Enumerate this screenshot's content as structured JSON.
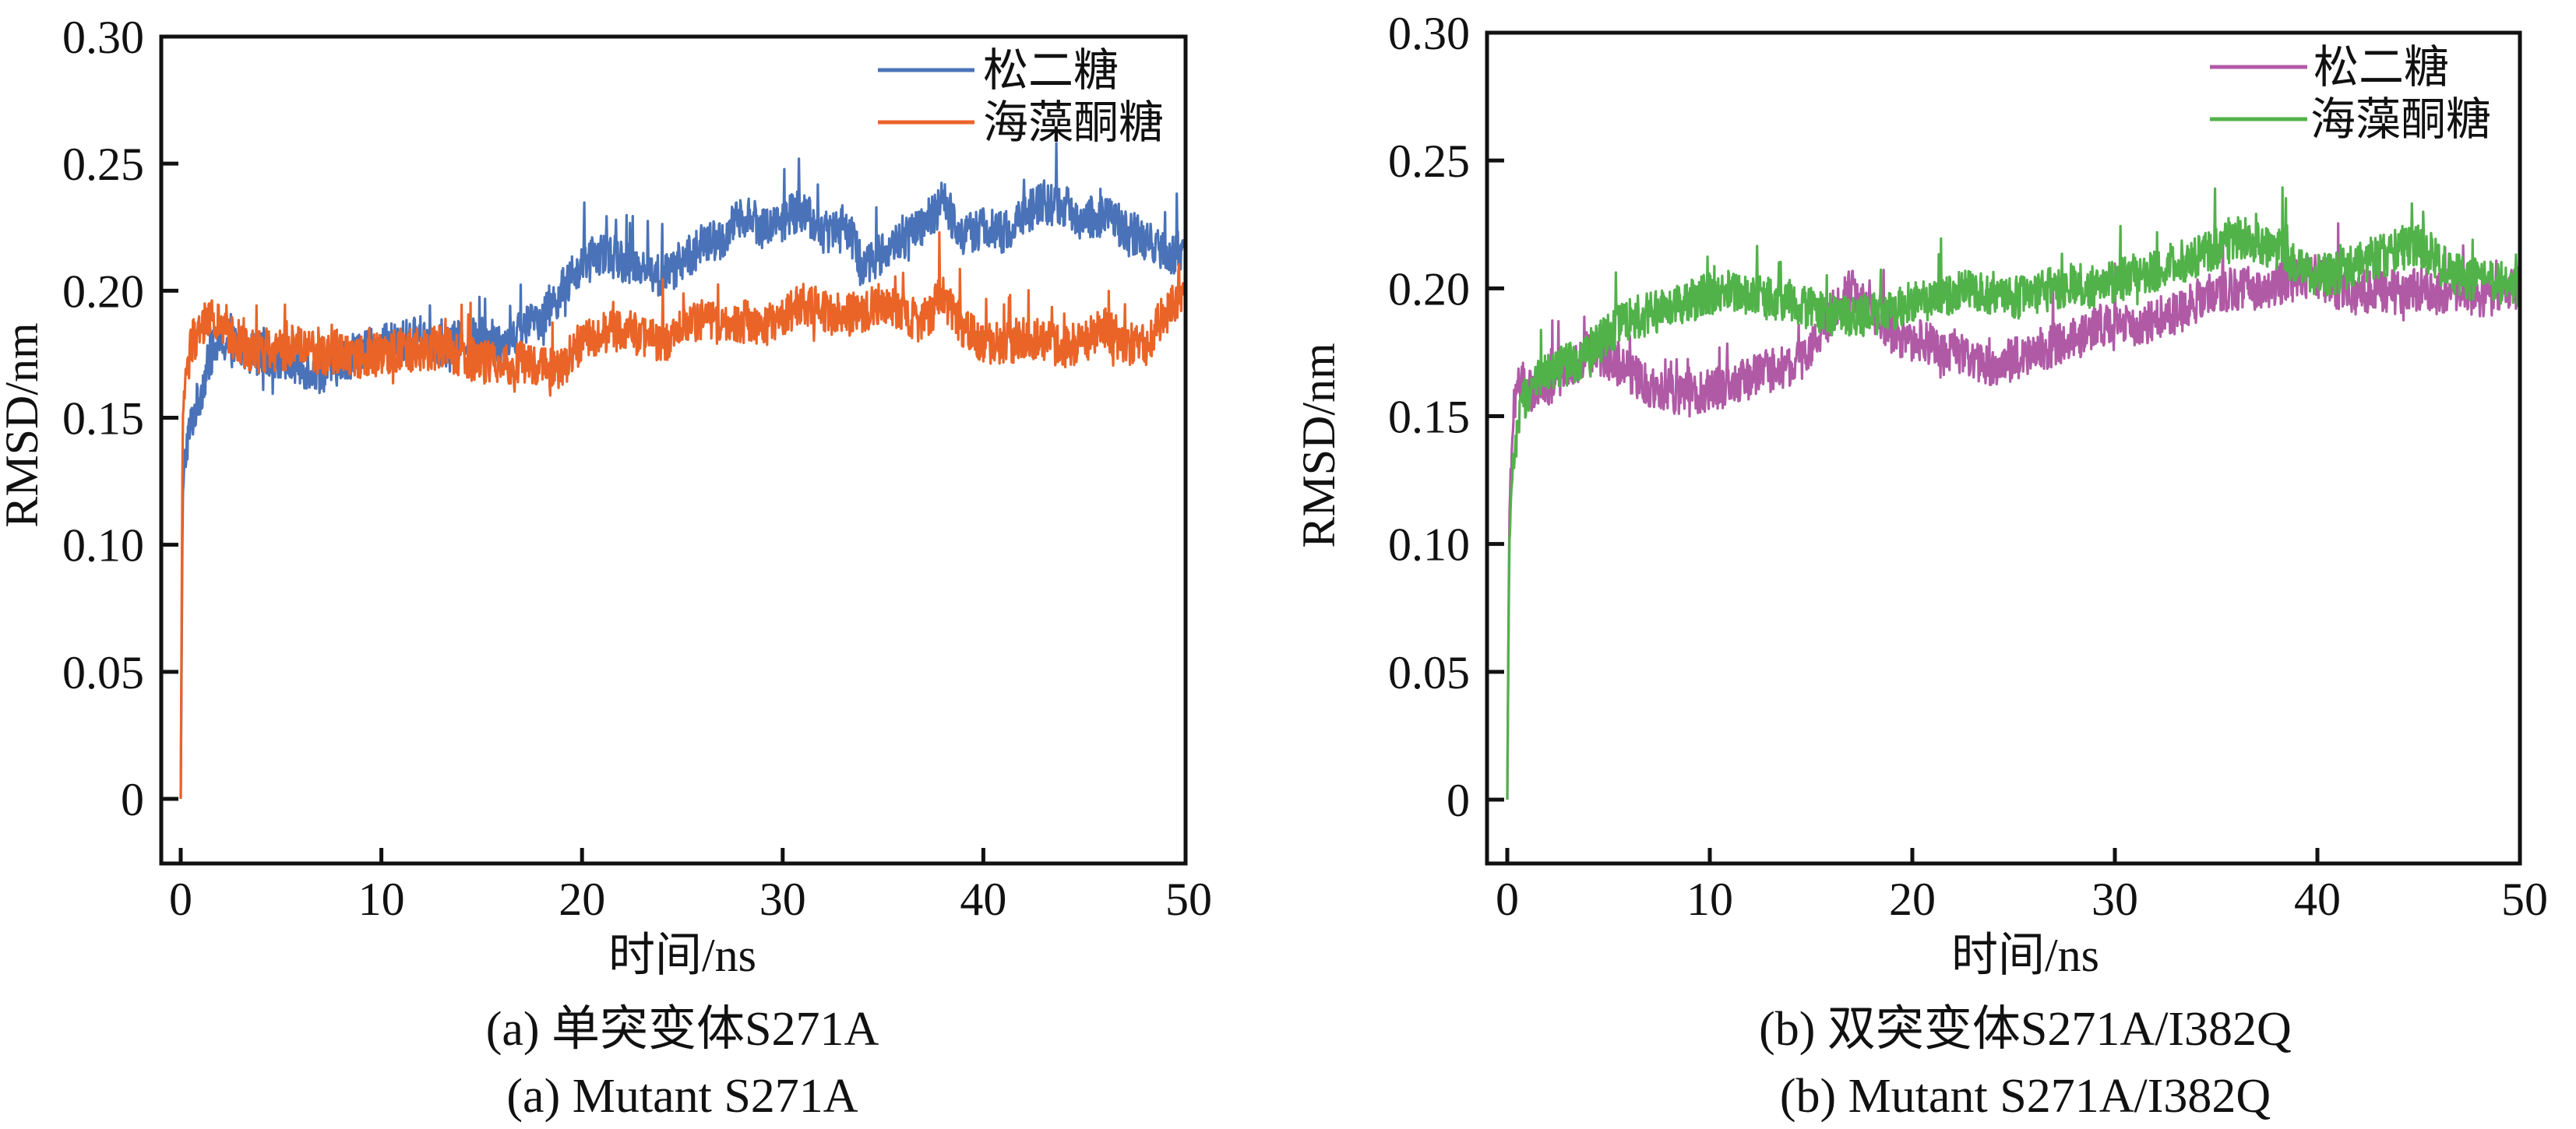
{
  "colors": {
    "axis": "#111111",
    "a_series1": "#4a72b8",
    "a_series2": "#ea6428",
    "b_series1": "#b05aa6",
    "b_series2": "#52b24a"
  },
  "chart_data": [
    {
      "id": "a",
      "type": "line",
      "title": "",
      "xlabel": "时间/ns",
      "ylabel": "RMSD/nm",
      "xlim": [
        -0.5,
        50
      ],
      "ylim": [
        -0.025,
        0.3
      ],
      "xticks": [
        0,
        10,
        20,
        30,
        40,
        50
      ],
      "xtick_labels": [
        "0",
        "10",
        "20",
        "30",
        "40",
        "50"
      ],
      "yticks": [
        0,
        0.05,
        0.1,
        0.15,
        0.2,
        0.25,
        0.3
      ],
      "ytick_labels": [
        "0",
        "0.05",
        "0.10",
        "0.15",
        "0.20",
        "0.25",
        "0.30"
      ],
      "grid": false,
      "legend_position": "top-right",
      "caption_cn": "(a) 单突变体S271A",
      "caption_en": "(a) Mutant S271A",
      "series": [
        {
          "name": "松二糖",
          "color_key": "a_series1",
          "x": [
            0,
            0.1,
            0.3,
            0.6,
            1,
            1.5,
            2,
            3,
            4,
            5,
            6,
            7,
            8,
            9,
            10,
            11,
            12,
            13,
            14,
            15,
            16,
            17,
            18,
            19,
            20,
            21,
            22,
            23,
            24,
            25,
            26,
            27,
            28,
            29,
            30,
            31,
            32,
            33,
            34,
            35,
            36,
            37,
            38,
            39,
            40,
            41,
            42,
            43,
            44,
            45,
            46,
            47,
            48,
            49,
            50
          ],
          "y": [
            0.0,
            0.12,
            0.14,
            0.15,
            0.16,
            0.175,
            0.18,
            0.177,
            0.175,
            0.173,
            0.17,
            0.168,
            0.172,
            0.176,
            0.178,
            0.18,
            0.182,
            0.178,
            0.18,
            0.182,
            0.18,
            0.185,
            0.19,
            0.2,
            0.21,
            0.215,
            0.212,
            0.21,
            0.205,
            0.212,
            0.218,
            0.22,
            0.23,
            0.225,
            0.228,
            0.232,
            0.222,
            0.228,
            0.21,
            0.215,
            0.22,
            0.225,
            0.235,
            0.222,
            0.225,
            0.222,
            0.23,
            0.235,
            0.233,
            0.228,
            0.23,
            0.225,
            0.22,
            0.215,
            0.215
          ]
        },
        {
          "name": "海藻酮糖",
          "color_key": "a_series2",
          "x": [
            0,
            0.1,
            0.3,
            0.6,
            1,
            1.5,
            2,
            3,
            4,
            5,
            6,
            7,
            8,
            9,
            10,
            11,
            12,
            13,
            14,
            15,
            16,
            17,
            18,
            19,
            20,
            21,
            22,
            23,
            24,
            25,
            26,
            27,
            28,
            29,
            30,
            31,
            32,
            33,
            34,
            35,
            36,
            37,
            38,
            39,
            40,
            41,
            42,
            43,
            44,
            45,
            46,
            47,
            48,
            49,
            50
          ],
          "y": [
            0.0,
            0.15,
            0.17,
            0.18,
            0.185,
            0.19,
            0.185,
            0.178,
            0.176,
            0.177,
            0.178,
            0.175,
            0.176,
            0.174,
            0.175,
            0.177,
            0.176,
            0.178,
            0.174,
            0.172,
            0.171,
            0.172,
            0.17,
            0.17,
            0.18,
            0.183,
            0.185,
            0.182,
            0.18,
            0.185,
            0.188,
            0.186,
            0.188,
            0.186,
            0.19,
            0.195,
            0.192,
            0.19,
            0.192,
            0.195,
            0.19,
            0.188,
            0.198,
            0.185,
            0.18,
            0.178,
            0.182,
            0.18,
            0.178,
            0.18,
            0.185,
            0.18,
            0.178,
            0.19,
            0.2
          ]
        }
      ]
    },
    {
      "id": "b",
      "type": "line",
      "title": "",
      "xlabel": "时间/ns",
      "ylabel": "RMSD/nm",
      "xlim": [
        -0.5,
        50
      ],
      "ylim": [
        -0.025,
        0.3
      ],
      "xticks": [
        0,
        10,
        20,
        30,
        40,
        50
      ],
      "xtick_labels": [
        "0",
        "10",
        "20",
        "30",
        "40",
        "50"
      ],
      "yticks": [
        0,
        0.05,
        0.1,
        0.15,
        0.2,
        0.25,
        0.3
      ],
      "ytick_labels": [
        "0",
        "0.05",
        "0.10",
        "0.15",
        "0.20",
        "0.25",
        "0.30"
      ],
      "grid": false,
      "legend_position": "top-right",
      "caption_cn": "(b) 双突变体S271A/I382Q",
      "caption_en": "(b) Mutant S271A/I382Q",
      "series": [
        {
          "name": "松二糖",
          "color_key": "b_series1",
          "x": [
            0,
            0.1,
            0.3,
            0.6,
            1,
            1.5,
            2,
            3,
            4,
            5,
            6,
            7,
            8,
            9,
            10,
            11,
            12,
            13,
            14,
            15,
            16,
            17,
            18,
            19,
            20,
            21,
            22,
            23,
            24,
            25,
            26,
            27,
            28,
            29,
            30,
            31,
            32,
            33,
            34,
            35,
            36,
            37,
            38,
            39,
            40,
            41,
            42,
            43,
            44,
            45,
            46,
            47,
            48,
            49,
            50
          ],
          "y": [
            0.0,
            0.11,
            0.155,
            0.165,
            0.16,
            0.158,
            0.162,
            0.168,
            0.175,
            0.172,
            0.168,
            0.162,
            0.16,
            0.158,
            0.16,
            0.162,
            0.165,
            0.168,
            0.17,
            0.175,
            0.19,
            0.2,
            0.19,
            0.182,
            0.18,
            0.178,
            0.175,
            0.172,
            0.17,
            0.172,
            0.175,
            0.178,
            0.18,
            0.185,
            0.186,
            0.185,
            0.188,
            0.19,
            0.195,
            0.198,
            0.2,
            0.2,
            0.202,
            0.203,
            0.205,
            0.2,
            0.198,
            0.2,
            0.198,
            0.2,
            0.198,
            0.2,
            0.197,
            0.198,
            0.2
          ]
        },
        {
          "name": "海藻酮糖",
          "color_key": "b_series2",
          "x": [
            0,
            0.1,
            0.3,
            0.6,
            1,
            1.5,
            2,
            3,
            4,
            5,
            6,
            7,
            8,
            9,
            10,
            11,
            12,
            13,
            14,
            15,
            16,
            17,
            18,
            19,
            20,
            21,
            22,
            23,
            24,
            25,
            26,
            27,
            28,
            29,
            30,
            31,
            32,
            33,
            34,
            35,
            36,
            37,
            38,
            39,
            40,
            41,
            42,
            43,
            44,
            45,
            46,
            47,
            48,
            49,
            50
          ],
          "y": [
            0.0,
            0.1,
            0.13,
            0.15,
            0.16,
            0.165,
            0.167,
            0.17,
            0.175,
            0.182,
            0.188,
            0.19,
            0.192,
            0.195,
            0.198,
            0.2,
            0.198,
            0.196,
            0.195,
            0.192,
            0.19,
            0.188,
            0.19,
            0.192,
            0.195,
            0.196,
            0.198,
            0.2,
            0.198,
            0.196,
            0.198,
            0.2,
            0.202,
            0.2,
            0.203,
            0.205,
            0.207,
            0.21,
            0.212,
            0.215,
            0.22,
            0.218,
            0.215,
            0.21,
            0.205,
            0.206,
            0.21,
            0.212,
            0.215,
            0.218,
            0.21,
            0.205,
            0.203,
            0.202,
            0.2
          ]
        }
      ]
    }
  ]
}
